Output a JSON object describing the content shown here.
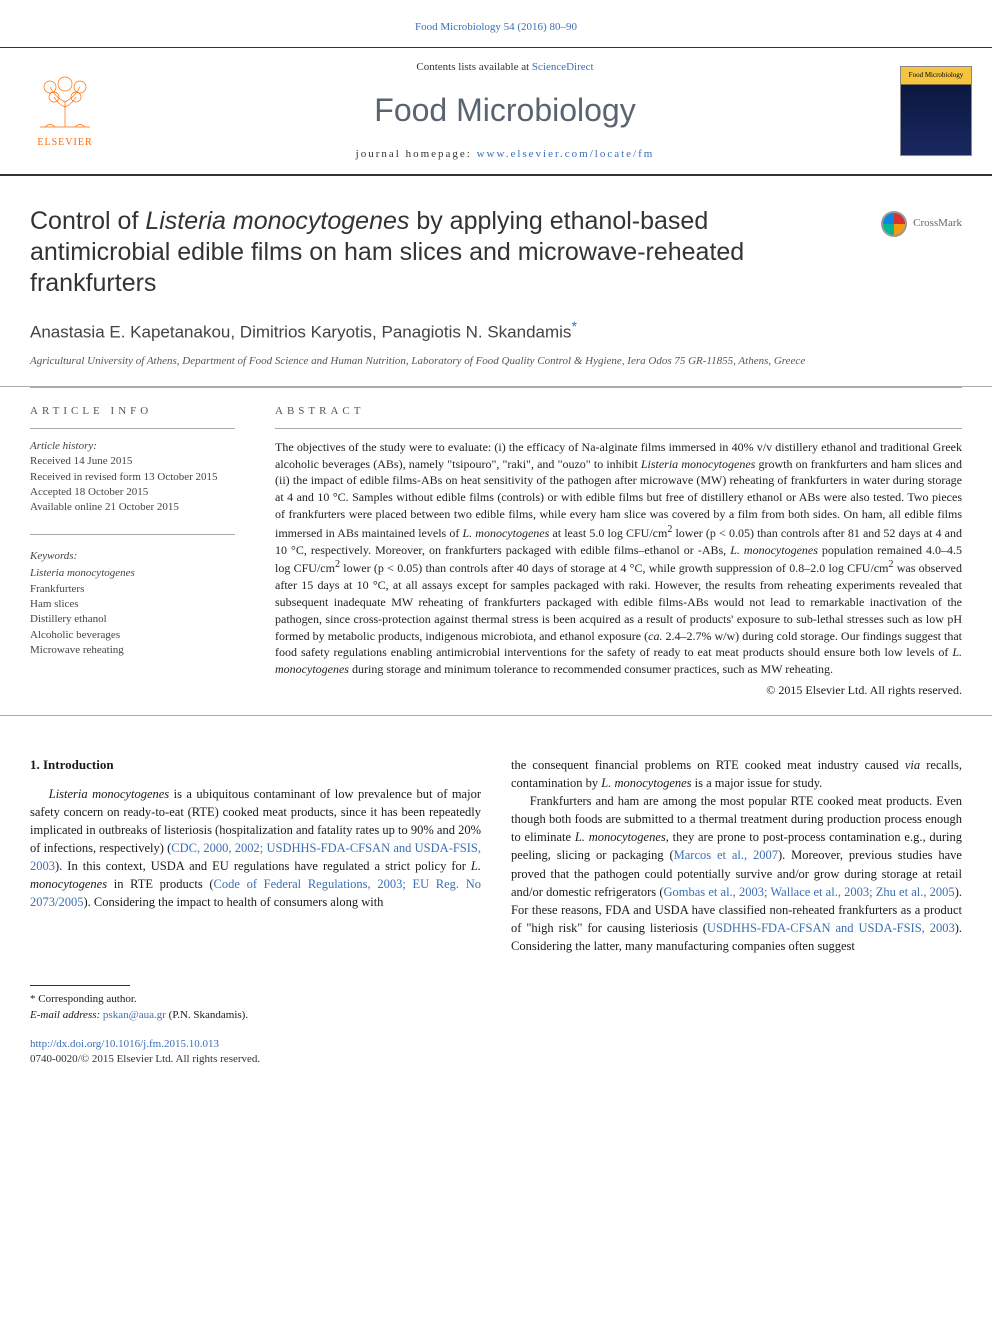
{
  "citation": "Food Microbiology 54 (2016) 80–90",
  "header": {
    "contents_prefix": "Contents lists available at ",
    "contents_link": "ScienceDirect",
    "journal_title": "Food Microbiology",
    "homepage_prefix": "journal homepage: ",
    "homepage_url": "www.elsevier.com/locate/fm",
    "publisher": "ELSEVIER",
    "cover_label": "Food Microbiology"
  },
  "crossmark_label": "CrossMark",
  "title_html": "Control of <em>Listeria monocytogenes</em> by applying ethanol-based antimicrobial edible films on ham slices and microwave-reheated frankfurters",
  "authors_html": "Anastasia E. Kapetanakou, Dimitrios Karyotis, Panagiotis N. Skandamis<sup class=\"corresponding\">*</sup>",
  "affiliation": "Agricultural University of Athens, Department of Food Science and Human Nutrition, Laboratory of Food Quality Control & Hygiene, Iera Odos 75 GR-11855, Athens, Greece",
  "article_info": {
    "heading": "ARTICLE INFO",
    "history_label": "Article history:",
    "received": "Received 14 June 2015",
    "revised": "Received in revised form 13 October 2015",
    "accepted": "Accepted 18 October 2015",
    "online": "Available online 21 October 2015",
    "keywords_label": "Keywords:",
    "keywords": [
      "Listeria monocytogenes",
      "Frankfurters",
      "Ham slices",
      "Distillery ethanol",
      "Alcoholic beverages",
      "Microwave reheating"
    ]
  },
  "abstract": {
    "heading": "ABSTRACT",
    "text_html": "The objectives of the study were to evaluate: (i) the efficacy of Na-alginate films immersed in 40% v/v distillery ethanol and traditional Greek alcoholic beverages (ABs), namely \"tsipouro\", \"raki\", and \"ouzo\" to inhibit <em>Listeria monocytogenes</em> growth on frankfurters and ham slices and (ii) the impact of edible films-ABs on heat sensitivity of the pathogen after microwave (MW) reheating of frankfurters in water during storage at 4 and 10 °C. Samples without edible films (controls) or with edible films but free of distillery ethanol or ABs were also tested. Two pieces of frankfurters were placed between two edible films, while every ham slice was covered by a film from both sides. On ham, all edible films immersed in ABs maintained levels of <em>L. monocytogenes</em> at least 5.0 log CFU/cm<sup>2</sup> lower (p < 0.05) than controls after 81 and 52 days at 4 and 10 °C, respectively. Moreover, on frankfurters packaged with edible films–ethanol or -ABs, <em>L. monocytogenes</em> population remained 4.0–4.5 log CFU/cm<sup>2</sup> lower (p < 0.05) than controls after 40 days of storage at 4 °C, while growth suppression of 0.8–2.0 log CFU/cm<sup>2</sup> was observed after 15 days at 10 °C, at all assays except for samples packaged with raki. However, the results from reheating experiments revealed that subsequent inadequate MW reheating of frankfurters packaged with edible films-ABs would not lead to remarkable inactivation of the pathogen, since cross-protection against thermal stress is been acquired as a result of products' exposure to sub-lethal stresses such as low pH formed by metabolic products, indigenous microbiota, and ethanol exposure (<em>ca.</em> 2.4–2.7% w/w) during cold storage. Our findings suggest that food safety regulations enabling antimicrobial interventions for the safety of ready to eat meat products should ensure both low levels of <em>L. monocytogenes</em> during storage and minimum tolerance to recommended consumer practices, such as MW reheating.",
    "copyright": "© 2015 Elsevier Ltd. All rights reserved."
  },
  "intro": {
    "heading": "1. Introduction",
    "para1_html": "<em>Listeria monocytogenes</em> is a ubiquitous contaminant of low prevalence but of major safety concern on ready-to-eat (RTE) cooked meat products, since it has been repeatedly implicated in outbreaks of listeriosis (hospitalization and fatality rates up to 90% and 20% of infections, respectively) (<a href=\"#\">CDC, 2000, 2002; USDHHS-FDA-CFSAN and USDA-FSIS, 2003</a>). In this context, USDA and EU regulations have regulated a strict policy for <em>L. monocytogenes</em> in RTE products (<a href=\"#\">Code of Federal Regulations, 2003; EU Reg. No 2073/2005</a>). Considering the impact to health of consumers along with",
    "para2_html": "the consequent financial problems on RTE cooked meat industry caused <em>via</em> recalls, contamination by <em>L. monocytogenes</em> is a major issue for study.",
    "para3_html": "Frankfurters and ham are among the most popular RTE cooked meat products. Even though both foods are submitted to a thermal treatment during production process enough to eliminate <em>L. monocytogenes</em>, they are prone to post-process contamination e.g., during peeling, slicing or packaging (<a href=\"#\">Marcos et al., 2007</a>). Moreover, previous studies have proved that the pathogen could potentially survive and/or grow during storage at retail and/or domestic refrigerators (<a href=\"#\">Gombas et al., 2003; Wallace et al., 2003; Zhu et al., 2005</a>). For these reasons, FDA and USDA have classified non-reheated frankfurters as a product of \"high risk\" for causing listeriosis (<a href=\"#\">USDHHS-FDA-CFSAN and USDA-FSIS, 2003</a>). Considering the latter, many manufacturing companies often suggest"
  },
  "footer": {
    "corresponding_note": "* Corresponding author.",
    "email_label": "E-mail address: ",
    "email": "pskan@aua.gr",
    "email_suffix": " (P.N. Skandamis).",
    "doi": "http://dx.doi.org/10.1016/j.fm.2015.10.013",
    "issn_copyright": "0740-0020/© 2015 Elsevier Ltd. All rights reserved."
  },
  "colors": {
    "link": "#3b6fb6",
    "elsevier_orange": "#ff6b00",
    "journal_gray": "#5a6470"
  }
}
